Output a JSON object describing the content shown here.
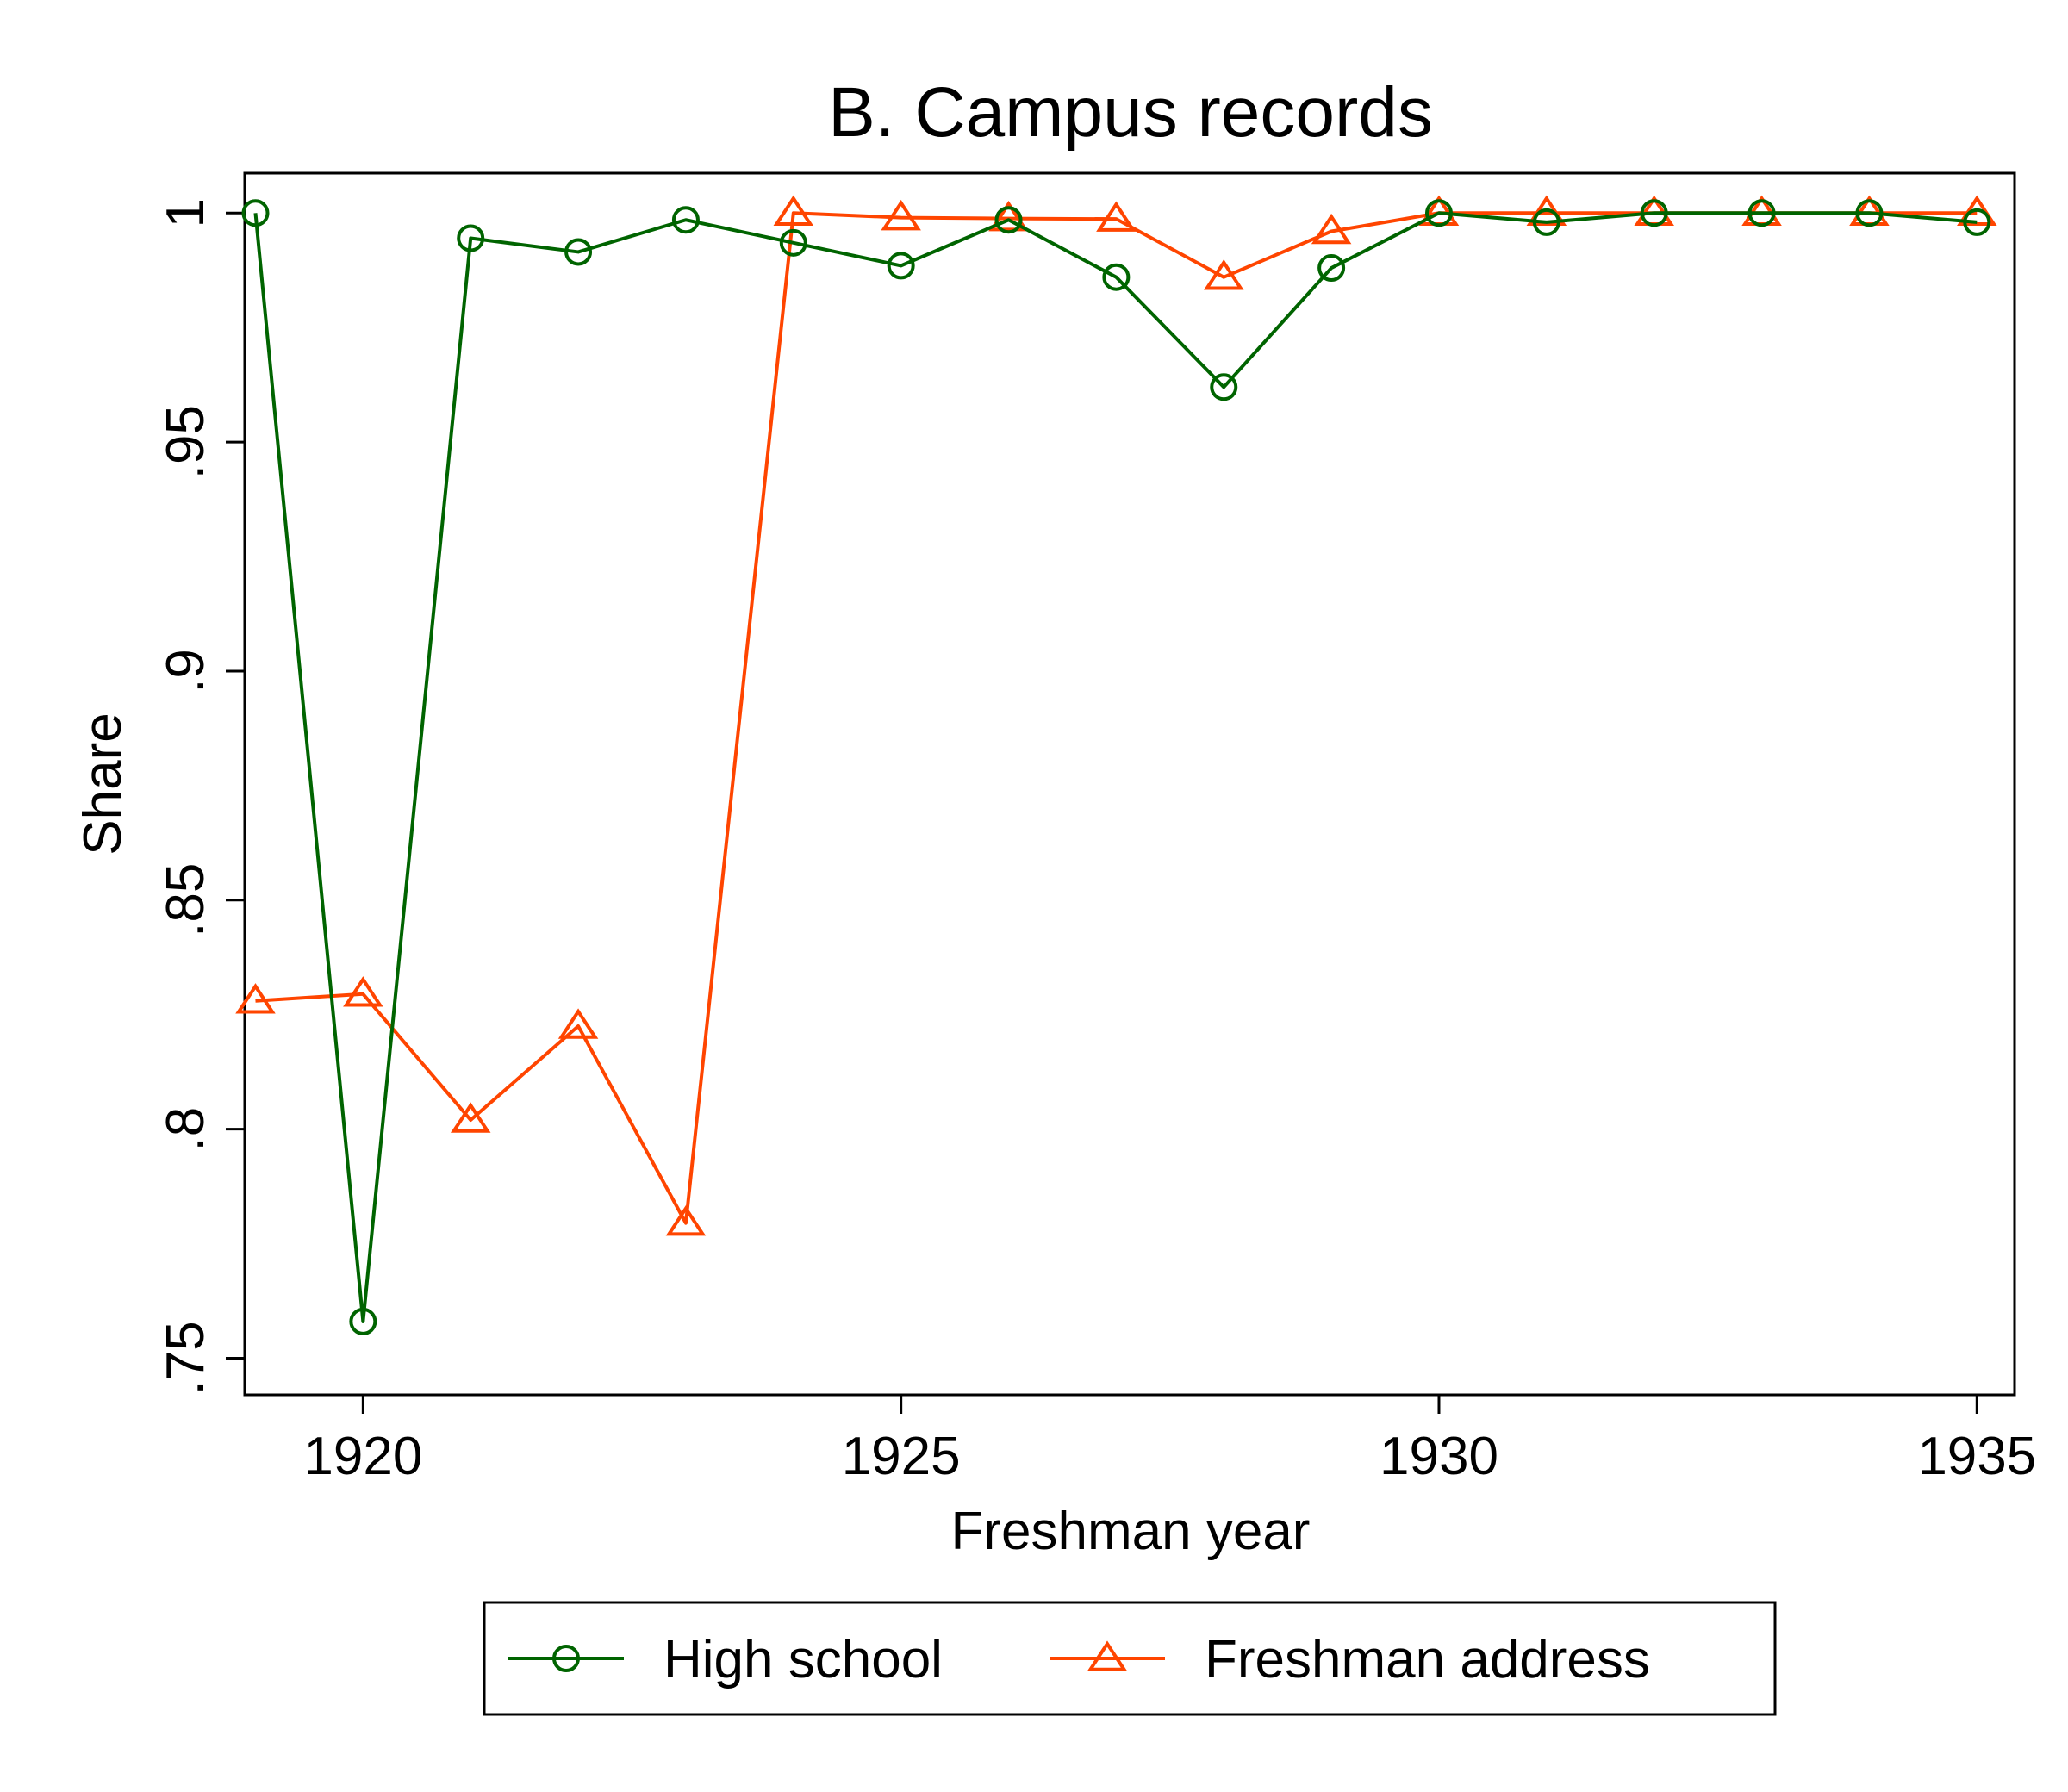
{
  "chart_data": {
    "type": "line",
    "title": "B. Campus records",
    "xlabel": "Freshman year",
    "ylabel": "Share",
    "xlim": [
      1918.9,
      1935.35
    ],
    "ylim": [
      0.742,
      1.0087
    ],
    "x_ticks": [
      1920,
      1925,
      1930,
      1935
    ],
    "x_tick_labels": [
      "1920",
      "1925",
      "1930",
      "1935"
    ],
    "y_ticks": [
      0.75,
      0.8,
      0.85,
      0.9,
      0.95,
      1
    ],
    "y_tick_labels": [
      ".75",
      ".8",
      ".85",
      ".9",
      ".95",
      "1"
    ],
    "grid": false,
    "legend_position": "bottom",
    "x": [
      1919,
      1920,
      1921,
      1922,
      1923,
      1924,
      1925,
      1926,
      1927,
      1928,
      1929,
      1930,
      1931,
      1932,
      1933,
      1934,
      1935
    ],
    "series": [
      {
        "name": "High school",
        "color": "#006400",
        "marker": "circle",
        "values": [
          1.0,
          0.758,
          0.9945,
          0.9915,
          0.9985,
          0.9935,
          0.9885,
          0.9985,
          0.986,
          0.962,
          0.988,
          1.0,
          0.998,
          1.0,
          1.0,
          1.0,
          0.998
        ]
      },
      {
        "name": "Freshman address",
        "color": "#ff4500",
        "marker": "triangle",
        "values": [
          0.828,
          0.8295,
          0.802,
          0.8225,
          0.7795,
          1.0,
          0.999,
          0.9988,
          0.9987,
          0.986,
          0.996,
          1.0,
          1.0,
          1.0,
          1.0,
          1.0,
          1.0
        ]
      }
    ]
  }
}
